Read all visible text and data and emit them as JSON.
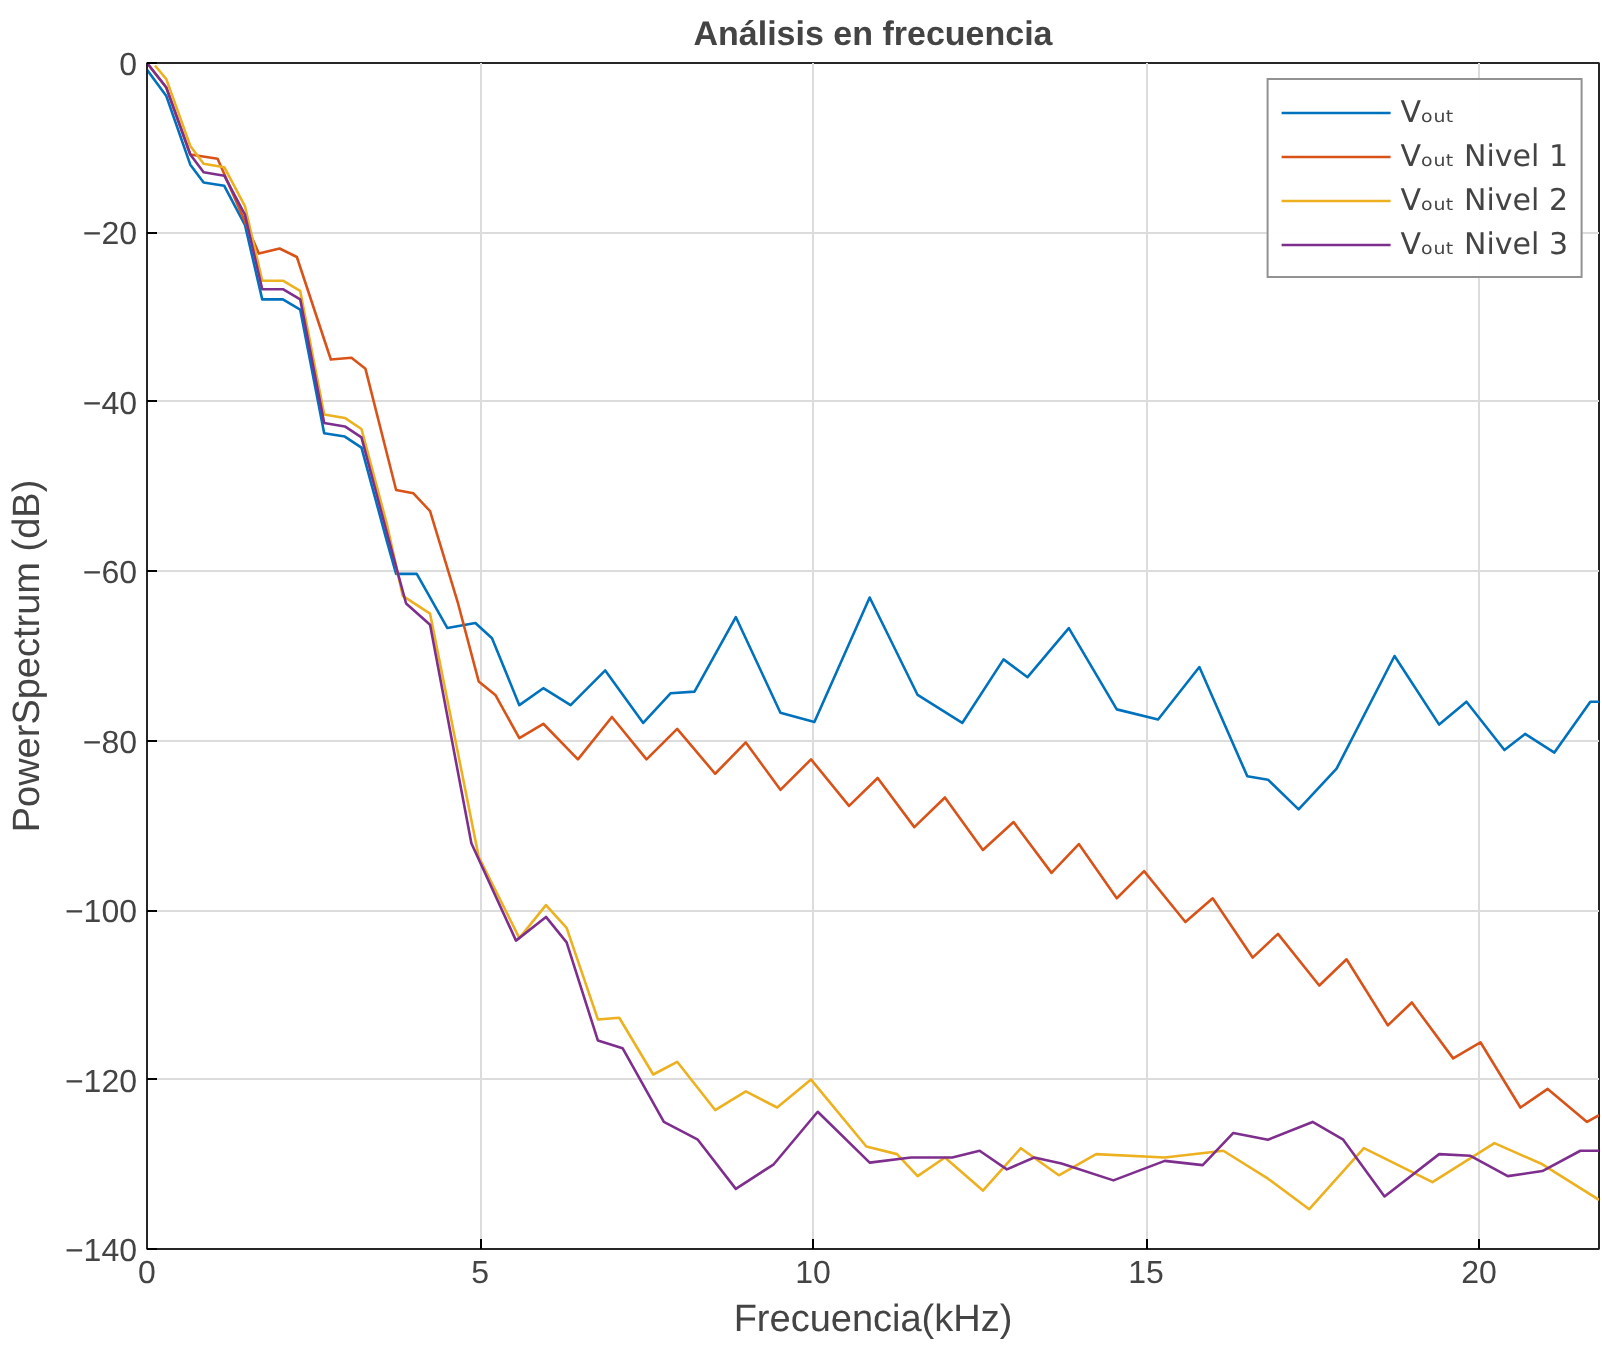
{
  "chart_data": {
    "type": "line",
    "title": "Análisis en frecuencia",
    "xlabel": "Frecuencia(kHz)",
    "ylabel": "PowerSpectrum (dB)",
    "xlim": [
      0,
      21.8
    ],
    "ylim": [
      -140,
      0
    ],
    "xticks": [
      0,
      5,
      10,
      15,
      20
    ],
    "yticks": [
      -140,
      -120,
      -100,
      -80,
      -60,
      -40,
      -20,
      0
    ],
    "grid": true,
    "legend": "top right",
    "line_style": "solid",
    "marker": "none",
    "series": [
      {
        "name": "Vₒᵤₜ",
        "color": "#0072bd",
        "x": [
          0,
          0.29,
          0.65,
          0.85,
          1.16,
          1.47,
          1.73,
          2.04,
          2.3,
          2.66,
          2.97,
          3.22,
          3.6,
          3.74,
          4.05,
          4.51,
          4.93,
          5.18,
          5.59,
          5.95,
          6.36,
          6.88,
          7.45,
          7.86,
          8.22,
          8.84,
          9.51,
          10.02,
          10.85,
          11.57,
          12.24,
          12.86,
          13.22,
          13.84,
          14.56,
          15.18,
          15.8,
          16.52,
          16.83,
          17.29,
          17.86,
          18.73,
          19.4,
          19.81,
          20.38,
          20.69,
          21.13,
          21.67,
          21.8
        ],
        "values": [
          -0.8,
          -3.9,
          -12,
          -14.1,
          -14.5,
          -19.1,
          -27.9,
          -27.9,
          -29.1,
          -43.7,
          -44.1,
          -45.4,
          -56.4,
          -60.3,
          -60.3,
          -66.7,
          -66.1,
          -67.9,
          -75.8,
          -73.8,
          -75.8,
          -71.7,
          -77.9,
          -74.4,
          -74.2,
          -65.4,
          -76.7,
          -77.8,
          -63.1,
          -74.6,
          -77.9,
          -70.4,
          -72.5,
          -66.7,
          -76.3,
          -77.5,
          -71.3,
          -84.2,
          -84.6,
          -88.1,
          -83.3,
          -70,
          -78.1,
          -75.4,
          -81.1,
          -79.2,
          -81.4,
          -75.4,
          -75.4
        ]
      },
      {
        "name": "Vₒᵤₜ Nivel 1",
        "color": "#d95319",
        "x": [
          0,
          0.29,
          0.65,
          1.06,
          1.68,
          1.99,
          2.25,
          2.76,
          3.07,
          3.28,
          3.74,
          4.0,
          4.25,
          4.67,
          4.98,
          5.23,
          5.59,
          5.95,
          6.47,
          6.98,
          7.5,
          7.96,
          8.53,
          8.99,
          9.51,
          9.97,
          10.54,
          10.97,
          11.52,
          11.98,
          12.55,
          13.01,
          13.58,
          13.99,
          14.56,
          14.97,
          15.59,
          16.0,
          16.6,
          16.98,
          17.6,
          18.01,
          18.63,
          18.99,
          19.61,
          20.02,
          20.62,
          21.03,
          21.62,
          21.8
        ],
        "values": [
          0,
          -2.9,
          -10.8,
          -11.3,
          -22.5,
          -21.9,
          -22.9,
          -35,
          -34.8,
          -36.1,
          -50.4,
          -50.8,
          -52.9,
          -63.8,
          -73,
          -74.6,
          -79.7,
          -78,
          -82.2,
          -77.2,
          -82.2,
          -78.6,
          -83.9,
          -80.2,
          -85.8,
          -82.2,
          -87.7,
          -84.4,
          -90.2,
          -86.7,
          -92.9,
          -89.6,
          -95.6,
          -92.2,
          -98.6,
          -95.4,
          -101.4,
          -98.6,
          -105.6,
          -102.8,
          -108.9,
          -105.8,
          -113.6,
          -110.9,
          -117.5,
          -115.6,
          -123.3,
          -121.1,
          -125,
          -124.2
        ]
      },
      {
        "name": "Vₒᵤₜ Nivel 2",
        "color": "#edb120",
        "x": [
          0.12,
          0.29,
          0.65,
          0.85,
          1.16,
          1.47,
          1.73,
          2.04,
          2.3,
          2.66,
          2.97,
          3.22,
          3.6,
          3.84,
          4.25,
          4.98,
          5.59,
          5.99,
          6.3,
          6.77,
          7.09,
          7.6,
          7.96,
          8.53,
          8.99,
          9.46,
          9.97,
          10.8,
          11.26,
          11.57,
          11.98,
          12.55,
          13.12,
          13.69,
          14.25,
          15.28,
          16.16,
          16.83,
          17.45,
          18.27,
          19.3,
          20.23,
          20.95,
          21.8
        ],
        "values": [
          -0.3,
          -1.9,
          -9.8,
          -11.9,
          -12.3,
          -16.9,
          -25.7,
          -25.7,
          -26.9,
          -41.5,
          -41.9,
          -43.2,
          -54.4,
          -62.9,
          -65,
          -93.7,
          -103.3,
          -99.4,
          -102.1,
          -112.9,
          -112.7,
          -119.4,
          -117.9,
          -123.6,
          -121.4,
          -123.3,
          -120,
          -127.9,
          -128.8,
          -131.4,
          -129.2,
          -133.1,
          -128.1,
          -131.3,
          -128.8,
          -129.2,
          -128.4,
          -131.7,
          -135.3,
          -128.1,
          -132.1,
          -127.5,
          -130,
          -134.2
        ]
      },
      {
        "name": "Vₒᵤₜ Nivel 3",
        "color": "#7e2f8e",
        "x": [
          0,
          0.29,
          0.65,
          0.85,
          1.16,
          1.47,
          1.73,
          2.04,
          2.3,
          2.66,
          2.97,
          3.22,
          3.6,
          3.89,
          4.25,
          4.87,
          5.54,
          5.99,
          6.3,
          6.77,
          7.14,
          7.76,
          8.27,
          8.84,
          9.41,
          10.07,
          10.85,
          11.47,
          12.09,
          12.5,
          12.91,
          13.32,
          13.73,
          14.51,
          15.28,
          15.85,
          16.31,
          16.83,
          17.5,
          17.96,
          18.58,
          19.4,
          19.87,
          20.43,
          20.95,
          21.52,
          21.8
        ],
        "values": [
          0,
          -2.9,
          -10.8,
          -12.9,
          -13.3,
          -17.9,
          -26.7,
          -26.7,
          -27.9,
          -42.5,
          -42.9,
          -44.2,
          -55.4,
          -63.8,
          -66.3,
          -92.1,
          -103.6,
          -100.8,
          -103.8,
          -115.4,
          -116.3,
          -125,
          -127.1,
          -132.9,
          -130,
          -123.8,
          -129.8,
          -129.2,
          -129.2,
          -128.4,
          -130.6,
          -129.2,
          -129.9,
          -131.9,
          -129.6,
          -130.1,
          -126.3,
          -127.1,
          -125,
          -127.1,
          -133.8,
          -128.8,
          -129,
          -131.4,
          -130.8,
          -128.4,
          -128.4
        ]
      }
    ]
  }
}
